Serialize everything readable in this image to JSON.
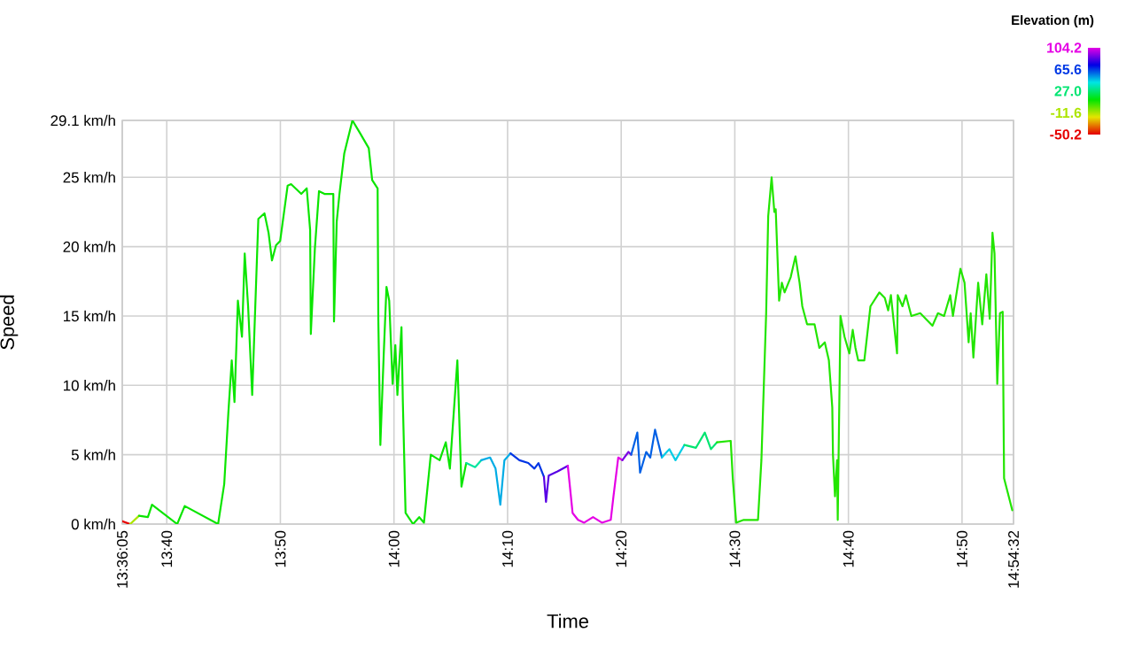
{
  "chart_data": {
    "type": "line",
    "xlabel": "Time",
    "ylabel": "Speed",
    "clabel": "Elevation (m)",
    "clim": [
      -50.2,
      104.2
    ],
    "cticks": [
      {
        "value": -50.2,
        "label": "-50.2"
      },
      {
        "value": -11.6,
        "label": "-11.6"
      },
      {
        "value": 27.0,
        "label": "27.0"
      },
      {
        "value": 65.6,
        "label": "65.6"
      },
      {
        "value": 104.2,
        "label": "104.2"
      }
    ],
    "xlim": [
      13.60139,
      14.90889
    ],
    "ylim": [
      0,
      29.1
    ],
    "xticks": [
      {
        "value": 13.60139,
        "label": "13:36:05"
      },
      {
        "value": 13.66667,
        "label": "13:40"
      },
      {
        "value": 13.83333,
        "label": "13:50"
      },
      {
        "value": 14,
        "label": "14:00"
      },
      {
        "value": 14.16667,
        "label": "14:10"
      },
      {
        "value": 14.33333,
        "label": "14:20"
      },
      {
        "value": 14.5,
        "label": "14:30"
      },
      {
        "value": 14.66667,
        "label": "14:40"
      },
      {
        "value": 14.83333,
        "label": "14:50"
      },
      {
        "value": 14.90889,
        "label": "14:54:32"
      }
    ],
    "yticks": [
      {
        "value": 0,
        "label": "0 km/h"
      },
      {
        "value": 5,
        "label": "5 km/h"
      },
      {
        "value": 10,
        "label": "10 km/h"
      },
      {
        "value": 15,
        "label": "15 km/h"
      },
      {
        "value": 20,
        "label": "20 km/h"
      },
      {
        "value": 25,
        "label": "25 km/h"
      },
      {
        "value": 29.1,
        "label": "29.1 km/h"
      }
    ],
    "grid": true,
    "marker": "none",
    "line_style": "solid",
    "series": [
      {
        "color": "#e60000",
        "x": [
          13.6014,
          13.613
        ],
        "values": [
          0.2,
          0
        ]
      },
      {
        "color": "#ace500",
        "x": [
          13.613,
          13.626
        ],
        "values": [
          0,
          0.6
        ]
      },
      {
        "color": "#0be500",
        "x": [
          13.626,
          13.639,
          13.645,
          13.682,
          13.693,
          13.742,
          13.751,
          13.757,
          13.762,
          13.766,
          13.771,
          13.777,
          13.781,
          13.786,
          13.792,
          13.801,
          13.81,
          13.816,
          13.821,
          13.827,
          13.833,
          13.844,
          13.849,
          13.864,
          13.872,
          13.877,
          13.878,
          13.884,
          13.89,
          13.898,
          13.911,
          13.912,
          13.916,
          13.92,
          13.927,
          13.939,
          13.95,
          13.963,
          13.968,
          13.976,
          13.977,
          13.98,
          13.985,
          13.989,
          13.993,
          13.998,
          14.002,
          14.005,
          14.011,
          14.013,
          14.017,
          14.028,
          14.037,
          14.044,
          14.054,
          14.067,
          14.076,
          14.082,
          14.093,
          14.099,
          14.106
        ],
        "values": [
          0.6,
          0.5,
          1.4,
          0,
          1.3,
          0,
          2.9,
          8.0,
          11.8,
          8.8,
          16.1,
          13.5,
          19.5,
          15.7,
          9.3,
          22.0,
          22.4,
          21.0,
          19.0,
          20.1,
          20.4,
          24.4,
          24.5,
          23.8,
          24.2,
          21.2,
          13.7,
          19.9,
          24.0,
          23.8,
          23.8,
          14.6,
          21.8,
          23.8,
          26.7,
          29.1,
          28.2,
          27.1,
          24.8,
          24.2,
          14.8,
          5.7,
          12.3,
          17.1,
          16.1,
          10.1,
          12.9,
          9.3,
          14.2,
          8.8,
          0.8,
          0,
          0.5,
          0.1,
          5.0,
          4.6,
          5.9,
          4.0,
          11.8,
          2.7,
          4.4
        ]
      },
      {
        "color": "#00e5a0",
        "x": [
          14.106,
          14.119,
          14.128
        ],
        "values": [
          4.4,
          4.1,
          4.6
        ]
      },
      {
        "color": "#00ace5",
        "x": [
          14.128,
          14.141,
          14.149,
          14.156,
          14.162,
          14.171
        ],
        "values": [
          4.6,
          4.8,
          4.0,
          1.4,
          4.6,
          5.1
        ]
      },
      {
        "color": "#0035e5",
        "x": [
          14.171,
          14.184,
          14.197,
          14.206,
          14.212,
          14.22
        ],
        "values": [
          5.1,
          4.6,
          4.4,
          4.0,
          4.4,
          3.4
        ]
      },
      {
        "color": "#5800e5",
        "x": [
          14.22,
          14.223,
          14.227,
          14.24,
          14.255
        ],
        "values": [
          3.4,
          1.6,
          3.5,
          3.8,
          4.2
        ]
      },
      {
        "color": "#e500e5",
        "x": [
          14.255,
          14.262,
          14.27,
          14.279,
          14.292,
          14.305,
          14.318,
          14.322,
          14.329,
          14.335
        ],
        "values": [
          4.2,
          0.8,
          0.3,
          0.1,
          0.5,
          0.1,
          0.3,
          2.0,
          4.8,
          4.6
        ]
      },
      {
        "color": "#7a00e5",
        "x": [
          14.335,
          14.344,
          14.348
        ],
        "values": [
          4.6,
          5.2,
          5.0
        ]
      },
      {
        "color": "#0060e5",
        "x": [
          14.348,
          14.357,
          14.361,
          14.37,
          14.376,
          14.383,
          14.393
        ],
        "values": [
          5.0,
          6.6,
          3.7,
          5.2,
          4.8,
          6.8,
          4.8
        ]
      },
      {
        "color": "#00cce5",
        "x": [
          14.393,
          14.404,
          14.413,
          14.426
        ],
        "values": [
          4.8,
          5.4,
          4.6,
          5.7
        ]
      },
      {
        "color": "#00e570",
        "x": [
          14.426,
          14.443,
          14.456,
          14.465,
          14.474
        ],
        "values": [
          5.7,
          5.5,
          6.6,
          5.4,
          5.9
        ]
      },
      {
        "color": "#22e500",
        "x": [
          14.474,
          14.494,
          14.497,
          14.502,
          14.513,
          14.53,
          14.534,
          14.539,
          14.546,
          14.549,
          14.554,
          14.558,
          14.56,
          14.565,
          14.569,
          14.573,
          14.582,
          14.589,
          14.595,
          14.599,
          14.606,
          14.617,
          14.624,
          14.632,
          14.638,
          14.643,
          14.644,
          14.647,
          14.65,
          14.651,
          14.655,
          14.661,
          14.668,
          14.673,
          14.677,
          14.681,
          14.69,
          14.699,
          14.712,
          14.72,
          14.725,
          14.729,
          14.738,
          14.739,
          14.746,
          14.751,
          14.759,
          14.772,
          14.79,
          14.798,
          14.807,
          14.816,
          14.82,
          14.831,
          14.837,
          14.843,
          14.846,
          14.85,
          14.857,
          14.863,
          14.869,
          14.874,
          14.878,
          14.881,
          14.885,
          14.889,
          14.893,
          14.895,
          14.907
        ],
        "values": [
          5.9,
          6.0,
          3.3,
          0.1,
          0.3,
          0.3,
          0.3,
          4.6,
          15.2,
          22.2,
          25.0,
          22.5,
          22.7,
          16.1,
          17.4,
          16.7,
          17.8,
          19.3,
          17.4,
          15.7,
          14.4,
          14.4,
          12.7,
          13.1,
          11.8,
          8.4,
          5.0,
          2.0,
          4.6,
          0.3,
          15.0,
          13.5,
          12.3,
          14.0,
          12.7,
          11.8,
          11.8,
          15.7,
          16.7,
          16.3,
          15.4,
          16.5,
          12.3,
          16.5,
          15.7,
          16.5,
          15.0,
          15.2,
          14.3,
          15.2,
          15.0,
          16.5,
          15.0,
          18.4,
          17.4,
          13.1,
          15.2,
          12.0,
          17.4,
          14.4,
          18.0,
          14.8,
          21.0,
          19.5,
          10.1,
          15.2,
          15.3,
          3.3,
          1.0
        ]
      }
    ]
  }
}
